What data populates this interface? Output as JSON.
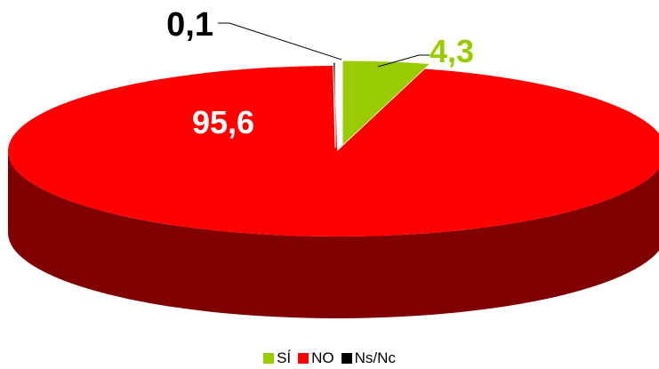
{
  "chart_data": {
    "type": "pie",
    "style": "3d-exploded",
    "categories": [
      "SÍ",
      "NO",
      "Ns/Nc"
    ],
    "values": [
      4.3,
      95.6,
      0.1
    ],
    "labels": [
      "4,3",
      "95,6",
      "0,1"
    ],
    "colors": {
      "SÍ": "#99CC00",
      "NO": "#FF0000",
      "Ns/Nc": "#000000"
    },
    "label_colors": {
      "SÍ": "#99CC00",
      "NO": "#FFFFFF",
      "Ns/Nc": "#000000"
    },
    "side_colors": {
      "SÍ": "#6B8F00",
      "NO": "#800000",
      "Ns/Nc": "#000000"
    },
    "legend_position": "bottom",
    "title": ""
  },
  "legend": {
    "items": [
      "SÍ",
      "NO",
      "Ns/Nc"
    ]
  }
}
